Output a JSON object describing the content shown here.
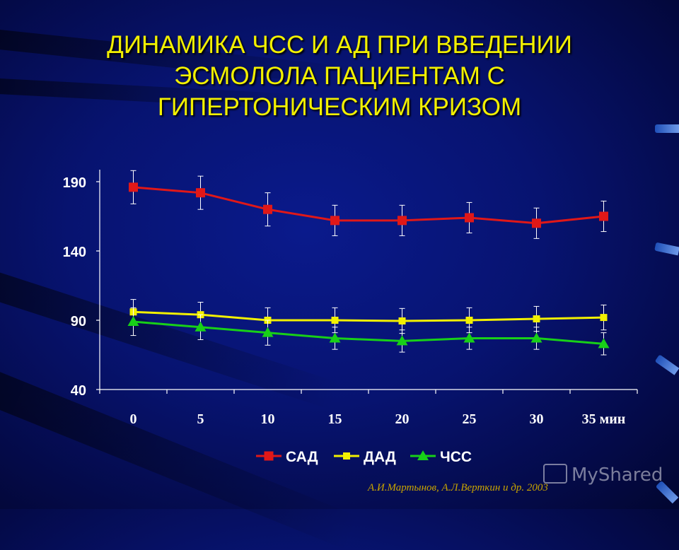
{
  "slide": {
    "title_lines": [
      "ДИНАМИКА ЧСС И АД ПРИ ВВЕДЕНИИ",
      "ЭСМОЛОЛА ПАЦИЕНТАМ С",
      "ГИПЕРТОНИЧЕСКИМ КРИЗОМ"
    ],
    "citation": "А.И.Мартынов, А.Л.Верткин и др. 2003",
    "watermark": "MyShared",
    "colors": {
      "title": "#f2f000",
      "background": "#071370"
    }
  },
  "chart_data": {
    "type": "line",
    "title": "",
    "xlabel": "",
    "ylabel": "",
    "x": [
      0,
      5,
      10,
      15,
      20,
      25,
      30,
      35
    ],
    "x_tick_labels": [
      "0",
      "5",
      "10",
      "15",
      "20",
      "25",
      "30",
      "35 мин"
    ],
    "y_ticks": [
      40,
      90,
      140,
      190
    ],
    "ylim": [
      40,
      200
    ],
    "grid": false,
    "legend_position": "bottom",
    "series": [
      {
        "name": "САД",
        "marker": "square",
        "color": "#e01818",
        "values": [
          186,
          182,
          170,
          162,
          162,
          164,
          160,
          165
        ],
        "errors": [
          12,
          12,
          12,
          11,
          11,
          11,
          11,
          11
        ]
      },
      {
        "name": "ДАД",
        "marker": "square-small",
        "color": "#f2f000",
        "values": [
          96,
          94,
          90,
          90,
          89.5,
          90,
          91,
          92
        ],
        "errors": [
          9,
          9,
          9,
          9,
          9,
          9,
          9,
          9
        ]
      },
      {
        "name": "ЧСС",
        "marker": "triangle",
        "color": "#18d018",
        "values": [
          89,
          85,
          81,
          77,
          75,
          77,
          77,
          73
        ],
        "errors": [
          10,
          9,
          9,
          8,
          8,
          8,
          8,
          8
        ]
      }
    ]
  }
}
